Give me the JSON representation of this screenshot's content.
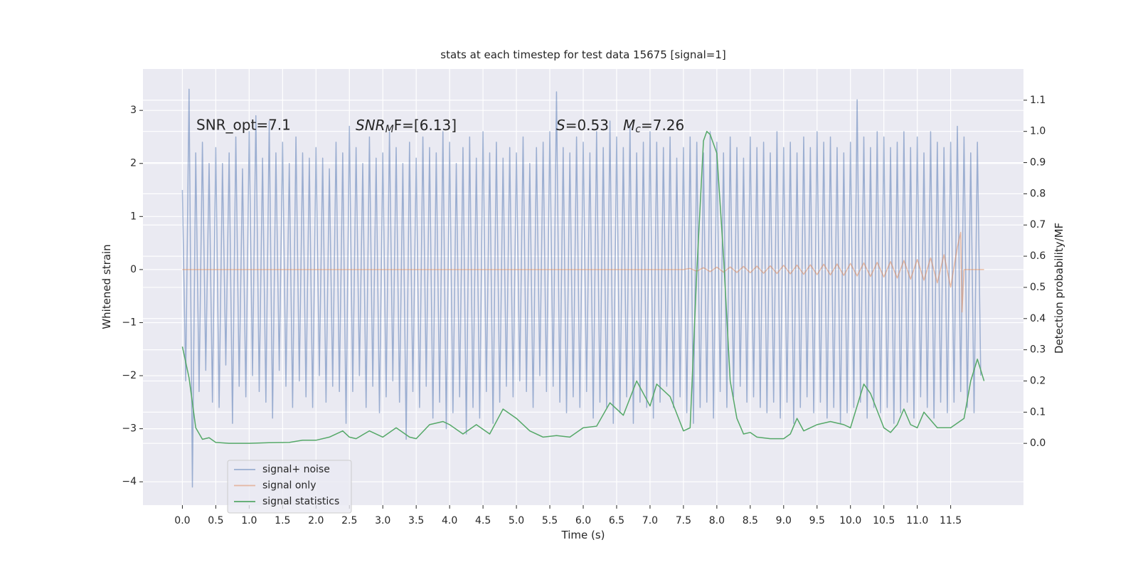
{
  "chart_data": {
    "type": "line",
    "title": "stats at each timestep for test data 15675 [signal=1]",
    "xlabel": "Time (s)",
    "ylabel": "Whitened strain",
    "y2label": "Detection probability/MF",
    "annotations": {
      "snr_opt": "SNR_opt=7.1",
      "snr_mf": {
        "base": "SNR",
        "sub": "M",
        "rest": "F=[6.13]"
      },
      "s": {
        "base": "S",
        "rest": "=0.53"
      },
      "mc": {
        "base": "M",
        "sub": "c",
        "rest": "=7.26"
      }
    },
    "xlim": [
      -0.59,
      12.59
    ],
    "ylim": [
      -4.44,
      3.78
    ],
    "y2lim": [
      -0.198,
      1.2
    ],
    "xticks": [
      {
        "value": 0,
        "label": "0.0"
      },
      0.5,
      {
        "value": 1,
        "label": "1.0"
      },
      1.5,
      {
        "value": 2,
        "label": "2.0"
      },
      2.5,
      {
        "value": 3,
        "label": "3.0"
      },
      3.5,
      {
        "value": 4,
        "label": "4.0"
      },
      4.5,
      {
        "value": 5,
        "label": "5.0"
      },
      5.5,
      {
        "value": 6,
        "label": "6.0"
      },
      6.5,
      {
        "value": 7,
        "label": "7.0"
      },
      7.5,
      {
        "value": 8,
        "label": "8.0"
      },
      8.5,
      {
        "value": 9,
        "label": "9.0"
      },
      9.5,
      {
        "value": 10,
        "label": "10.0"
      },
      10.5,
      {
        "value": 11,
        "label": "11.0"
      },
      11.5
    ],
    "yticks": [
      {
        "value": -4,
        "label": "−4"
      },
      {
        "value": -3,
        "label": "−3"
      },
      {
        "value": -2,
        "label": "−2"
      },
      {
        "value": -1,
        "label": "−1"
      },
      0,
      1,
      2,
      3
    ],
    "y2ticks": [
      {
        "value": 0,
        "label": "0.0"
      },
      0.1,
      0.2,
      0.3,
      0.4,
      0.5,
      0.6,
      0.7,
      0.8,
      0.9,
      {
        "value": 1,
        "label": "1.0"
      },
      1.1
    ],
    "grid": true,
    "background": "#eaeaf2",
    "series": [
      {
        "name": "signal+ noise",
        "color": "#4c72b0",
        "alpha": 0.5,
        "x": [
          0,
          0.05,
          0.1,
          0.15,
          0.2,
          0.25,
          0.3,
          0.35,
          0.4,
          0.45,
          0.5,
          0.55,
          0.6,
          0.65,
          0.7,
          0.75,
          0.8,
          0.85,
          0.9,
          0.95,
          1,
          1.05,
          1.1,
          1.15,
          1.2,
          1.25,
          1.3,
          1.35,
          1.4,
          1.45,
          1.5,
          1.55,
          1.6,
          1.65,
          1.7,
          1.75,
          1.8,
          1.85,
          1.9,
          1.95,
          2,
          2.05,
          2.1,
          2.15,
          2.2,
          2.25,
          2.3,
          2.35,
          2.4,
          2.45,
          2.5,
          2.55,
          2.6,
          2.65,
          2.7,
          2.75,
          2.8,
          2.85,
          2.9,
          2.95,
          3,
          3.05,
          3.1,
          3.15,
          3.2,
          3.25,
          3.3,
          3.35,
          3.4,
          3.45,
          3.5,
          3.55,
          3.6,
          3.65,
          3.7,
          3.75,
          3.8,
          3.85,
          3.9,
          3.95,
          4,
          4.05,
          4.1,
          4.15,
          4.2,
          4.25,
          4.3,
          4.35,
          4.4,
          4.45,
          4.5,
          4.55,
          4.6,
          4.65,
          4.7,
          4.75,
          4.8,
          4.85,
          4.9,
          4.95,
          5,
          5.05,
          5.1,
          5.15,
          5.2,
          5.25,
          5.3,
          5.35,
          5.4,
          5.45,
          5.5,
          5.55,
          5.6,
          5.65,
          5.7,
          5.75,
          5.8,
          5.85,
          5.9,
          5.95,
          6,
          6.05,
          6.1,
          6.15,
          6.2,
          6.25,
          6.3,
          6.35,
          6.4,
          6.45,
          6.5,
          6.55,
          6.6,
          6.65,
          6.7,
          6.75,
          6.8,
          6.85,
          6.9,
          6.95,
          7,
          7.05,
          7.1,
          7.15,
          7.2,
          7.25,
          7.3,
          7.35,
          7.4,
          7.45,
          7.5,
          7.55,
          7.6,
          7.65,
          7.7,
          7.75,
          7.8,
          7.85,
          7.9,
          7.95,
          8,
          8.05,
          8.1,
          8.15,
          8.2,
          8.25,
          8.3,
          8.35,
          8.4,
          8.45,
          8.5,
          8.55,
          8.6,
          8.65,
          8.7,
          8.75,
          8.8,
          8.85,
          8.9,
          8.95,
          9,
          9.05,
          9.1,
          9.15,
          9.2,
          9.25,
          9.3,
          9.35,
          9.4,
          9.45,
          9.5,
          9.55,
          9.6,
          9.65,
          9.7,
          9.75,
          9.8,
          9.85,
          9.9,
          9.95,
          10,
          10.05,
          10.1,
          10.15,
          10.2,
          10.25,
          10.3,
          10.35,
          10.4,
          10.45,
          10.5,
          10.55,
          10.6,
          10.65,
          10.7,
          10.75,
          10.8,
          10.85,
          10.9,
          10.95,
          11,
          11.05,
          11.1,
          11.15,
          11.2,
          11.25,
          11.3,
          11.35,
          11.4,
          11.45,
          11.5,
          11.55,
          11.6,
          11.65,
          11.7,
          11.75,
          11.8,
          11.85,
          11.9,
          11.95
        ],
        "values": [
          1.5,
          -2.1,
          3.4,
          -4.1,
          2.2,
          -2.3,
          2.4,
          -1.9,
          2.0,
          -2.5,
          2.3,
          -2.6,
          2.0,
          -1.8,
          2.2,
          -2.9,
          2.5,
          -2.2,
          1.9,
          -2.4,
          2.6,
          -2.0,
          2.9,
          -2.3,
          2.1,
          -2.5,
          2.8,
          -2.8,
          2.2,
          -1.9,
          2.4,
          -2.2,
          2.0,
          -2.6,
          2.5,
          -2.1,
          2.2,
          -2.4,
          2.1,
          -2.6,
          2.3,
          -2.0,
          2.1,
          -2.5,
          1.9,
          -2.2,
          2.4,
          -2.3,
          2.2,
          -2.9,
          2.7,
          -2.3,
          2.3,
          -2.0,
          2.0,
          -2.6,
          2.5,
          -2.2,
          2.1,
          -2.7,
          2.2,
          -2.4,
          2.6,
          -2.1,
          2.3,
          -2.5,
          2.0,
          -3.2,
          2.4,
          -2.3,
          2.1,
          -2.6,
          2.5,
          -2.2,
          2.3,
          -2.8,
          2.2,
          -2.5,
          2.6,
          -3.0,
          2.4,
          -2.7,
          2.0,
          -2.4,
          2.3,
          -3.1,
          2.5,
          -2.6,
          2.1,
          -2.8,
          2.6,
          -2.3,
          2.2,
          -2.9,
          2.4,
          -2.5,
          2.1,
          -2.2,
          2.3,
          -2.4,
          2.2,
          -2.1,
          2.5,
          -2.3,
          2.0,
          -2.6,
          2.3,
          -2.0,
          2.4,
          -2.3,
          2.6,
          -2.2,
          3.35,
          -2.5,
          2.3,
          -2.7,
          2.2,
          -2.4,
          2.5,
          -2.6,
          2.4,
          -2.3,
          2.2,
          -2.8,
          2.6,
          -2.5,
          2.3,
          -2.6,
          2.8,
          -2.9,
          2.5,
          -2.7,
          2.3,
          -2.4,
          2.7,
          -2.9,
          2.2,
          -2.5,
          2.4,
          -2.6,
          2.6,
          -2.8,
          2.4,
          -2.5,
          2.3,
          -2.2,
          2.5,
          -2.6,
          2.1,
          -2.4,
          2.3,
          -2.7,
          2.5,
          -2.9,
          2.4,
          -2.6,
          2.2,
          -2.5,
          2.6,
          -2.8,
          2.4,
          -2.3,
          2.2,
          -2.6,
          2.5,
          -2.4,
          2.3,
          -2.2,
          2.1,
          -2.5,
          2.5,
          -2.4,
          2.3,
          -2.6,
          2.4,
          -2.7,
          2.2,
          -2.5,
          2.6,
          -2.8,
          2.3,
          -2.5,
          2.4,
          -2.9,
          2.2,
          -2.6,
          2.5,
          -2.4,
          2.3,
          -2.7,
          2.6,
          -2.5,
          2.4,
          -2.8,
          2.5,
          -2.6,
          2.3,
          -2.9,
          2.2,
          -2.7,
          2.4,
          -2.6,
          3.2,
          -2.5,
          2.5,
          -2.8,
          2.3,
          -2.6,
          2.6,
          -2.7,
          2.5,
          -2.6,
          2.3,
          -2.9,
          2.4,
          -2.7,
          2.6,
          -2.5,
          2.3,
          -2.8,
          2.5,
          -2.4,
          2.2,
          -2.6,
          2.6,
          -2.8,
          2.4,
          -2.5,
          2.3,
          -2.7,
          2.4,
          -2.5,
          2.7,
          -2.3,
          2.5,
          -2.6,
          2.2,
          -2.7,
          2.4,
          -2.0
        ]
      },
      {
        "name": "signal only",
        "color": "#dd8452",
        "alpha": 0.5,
        "x": [
          0,
          7.5,
          7.6,
          7.7,
          7.8,
          7.9,
          8.0,
          8.1,
          8.2,
          8.3,
          8.4,
          8.5,
          8.6,
          8.7,
          8.8,
          8.9,
          9.0,
          9.1,
          9.2,
          9.3,
          9.4,
          9.5,
          9.6,
          9.7,
          9.8,
          9.9,
          10.0,
          10.1,
          10.2,
          10.3,
          10.4,
          10.5,
          10.6,
          10.7,
          10.8,
          10.9,
          11.0,
          11.1,
          11.2,
          11.3,
          11.4,
          11.5,
          11.6,
          11.65,
          11.67,
          11.7,
          12.0
        ],
        "values": [
          0,
          0,
          0.02,
          -0.03,
          0.035,
          -0.04,
          0.045,
          -0.05,
          0.05,
          -0.055,
          0.06,
          -0.06,
          0.065,
          -0.07,
          0.07,
          -0.075,
          0.08,
          -0.08,
          0.085,
          -0.09,
          0.09,
          -0.095,
          0.1,
          -0.1,
          0.105,
          -0.11,
          0.115,
          -0.12,
          0.125,
          -0.13,
          0.135,
          -0.14,
          0.15,
          -0.16,
          0.17,
          -0.18,
          0.19,
          -0.2,
          0.22,
          -0.25,
          0.28,
          -0.33,
          0.42,
          0.7,
          -0.8,
          0,
          0
        ]
      },
      {
        "name": "signal statistics",
        "color": "#55a868",
        "alpha": 1,
        "axis": "y2",
        "x": [
          0,
          0.1,
          0.2,
          0.3,
          0.4,
          0.5,
          0.7,
          1.0,
          1.3,
          1.6,
          1.8,
          2.0,
          2.2,
          2.4,
          2.5,
          2.6,
          2.8,
          3.0,
          3.2,
          3.4,
          3.5,
          3.7,
          3.9,
          4.0,
          4.2,
          4.4,
          4.6,
          4.8,
          5.0,
          5.2,
          5.4,
          5.6,
          5.8,
          6.0,
          6.2,
          6.4,
          6.6,
          6.8,
          7.0,
          7.1,
          7.3,
          7.5,
          7.6,
          7.7,
          7.8,
          7.85,
          7.9,
          8.0,
          8.1,
          8.2,
          8.3,
          8.4,
          8.5,
          8.6,
          8.8,
          9.0,
          9.1,
          9.2,
          9.3,
          9.5,
          9.7,
          9.9,
          10.0,
          10.2,
          10.3,
          10.5,
          10.6,
          10.7,
          10.8,
          10.9,
          11.0,
          11.1,
          11.3,
          11.5,
          11.7,
          11.8,
          11.9,
          12.0
        ],
        "values": [
          0.31,
          0.21,
          0.05,
          0.013,
          0.018,
          0.003,
          0.0,
          0.0,
          0.002,
          0.003,
          0.01,
          0.01,
          0.02,
          0.04,
          0.02,
          0.015,
          0.04,
          0.02,
          0.05,
          0.02,
          0.015,
          0.06,
          0.07,
          0.06,
          0.03,
          0.06,
          0.03,
          0.11,
          0.08,
          0.04,
          0.02,
          0.025,
          0.02,
          0.05,
          0.055,
          0.13,
          0.09,
          0.2,
          0.12,
          0.19,
          0.15,
          0.04,
          0.05,
          0.55,
          0.97,
          1.0,
          0.99,
          0.93,
          0.6,
          0.2,
          0.08,
          0.03,
          0.035,
          0.02,
          0.015,
          0.015,
          0.03,
          0.08,
          0.04,
          0.06,
          0.07,
          0.06,
          0.05,
          0.19,
          0.16,
          0.05,
          0.035,
          0.06,
          0.11,
          0.06,
          0.05,
          0.1,
          0.05,
          0.05,
          0.08,
          0.2,
          0.27,
          0.2
        ]
      }
    ]
  }
}
